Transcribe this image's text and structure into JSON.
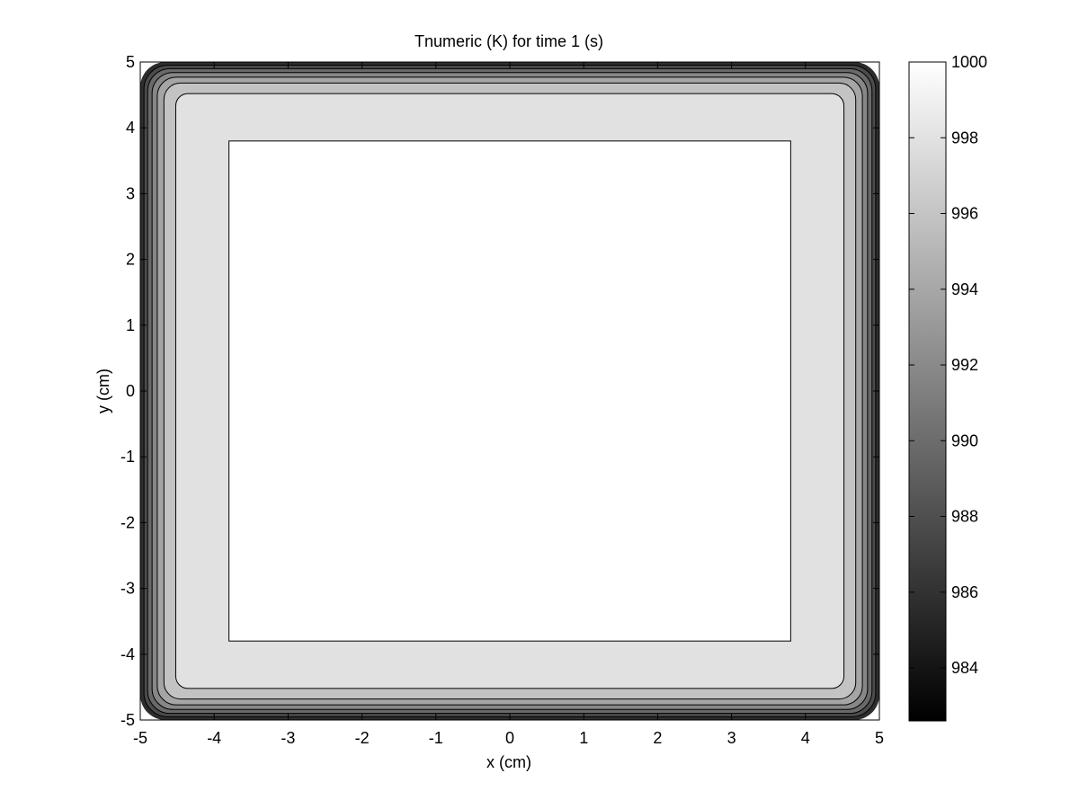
{
  "chart_data": {
    "type": "heatmap",
    "subtype": "filled-contour",
    "title": "Tnumeric (K) for time 1 (s)",
    "xlabel": "x (cm)",
    "ylabel": "y (cm)",
    "xlim": [
      -5,
      5
    ],
    "ylim": [
      -5,
      5
    ],
    "xticks": [
      -5,
      -4,
      -3,
      -2,
      -1,
      0,
      1,
      2,
      3,
      4,
      5
    ],
    "yticks": [
      5,
      4,
      3,
      2,
      1,
      0,
      -1,
      -2,
      -3,
      -4,
      -5
    ],
    "colormap": "gray",
    "colorbar": {
      "clim": [
        982.6,
        1000
      ],
      "ticks": [
        1000,
        998,
        996,
        994,
        992,
        990,
        988,
        986,
        984
      ],
      "placement": "right"
    },
    "contour_levels": [
      {
        "half_width": 5.0,
        "value": 983.5,
        "color": "#2d2d2d"
      },
      {
        "half_width": 4.95,
        "value": 986.0,
        "color": "#4b4b4b"
      },
      {
        "half_width": 4.9,
        "value": 988.5,
        "color": "#696969"
      },
      {
        "half_width": 4.84,
        "value": 991.0,
        "color": "#878787"
      },
      {
        "half_width": 4.77,
        "value": 993.5,
        "color": "#a5a5a5"
      },
      {
        "half_width": 4.68,
        "value": 996.0,
        "color": "#c3c3c3"
      },
      {
        "half_width": 4.52,
        "value": 998.0,
        "color": "#e1e1e1"
      },
      {
        "half_width": 3.8,
        "value": 1000.0,
        "color": "#ffffff"
      }
    ],
    "grid": false
  }
}
